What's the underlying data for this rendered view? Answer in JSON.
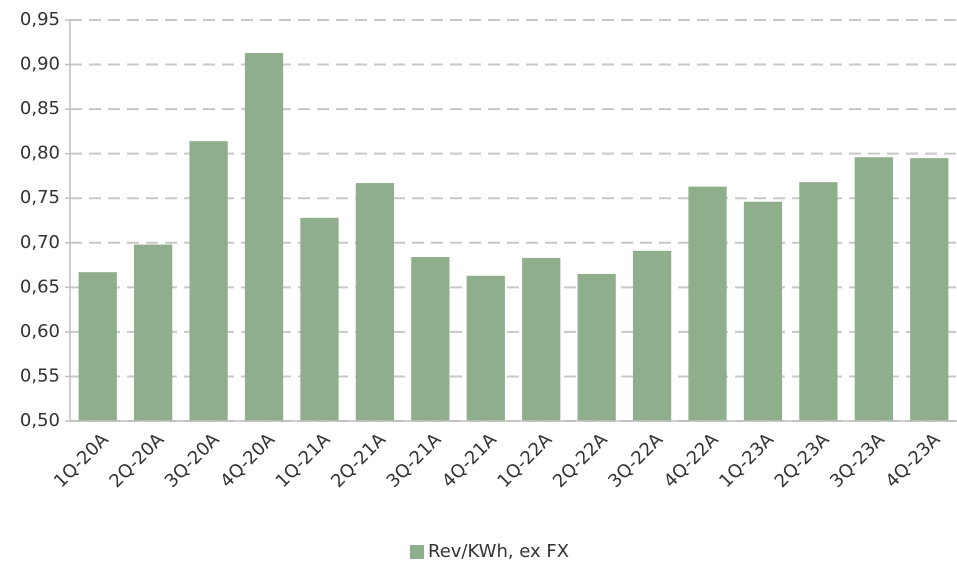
{
  "chart_data": {
    "type": "bar",
    "categories": [
      "1Q-20A",
      "2Q-20A",
      "3Q-20A",
      "4Q-20A",
      "1Q-21A",
      "2Q-21A",
      "3Q-21A",
      "4Q-21A",
      "1Q-22A",
      "2Q-22A",
      "3Q-22A",
      "4Q-22A",
      "1Q-23A",
      "2Q-23A",
      "3Q-23A",
      "4Q-23A"
    ],
    "series": [
      {
        "name": "Rev/KWh, ex FX",
        "color": "#8fae8b",
        "values": [
          0.667,
          0.698,
          0.814,
          0.913,
          0.728,
          0.767,
          0.684,
          0.663,
          0.683,
          0.665,
          0.691,
          0.763,
          0.746,
          0.768,
          0.796,
          0.795
        ]
      }
    ],
    "ylim": [
      0.5,
      0.95
    ],
    "yticks": [
      {
        "value": 0.5,
        "label": "0,50"
      },
      {
        "value": 0.55,
        "label": "0,55"
      },
      {
        "value": 0.6,
        "label": "0,60"
      },
      {
        "value": 0.65,
        "label": "0,65"
      },
      {
        "value": 0.7,
        "label": "0,70"
      },
      {
        "value": 0.75,
        "label": "0,75"
      },
      {
        "value": 0.8,
        "label": "0,80"
      },
      {
        "value": 0.85,
        "label": "0,85"
      },
      {
        "value": 0.9,
        "label": "0,90"
      },
      {
        "value": 0.95,
        "label": "0,95"
      }
    ],
    "grid": true,
    "legend": "bottom"
  }
}
